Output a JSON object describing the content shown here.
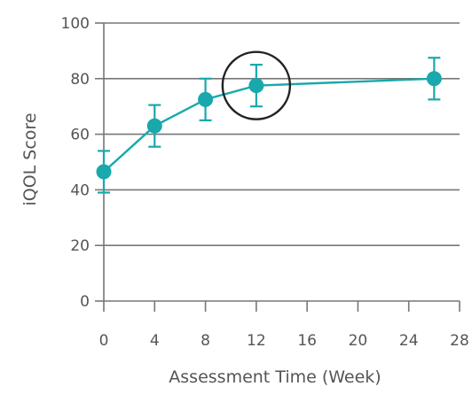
{
  "chart_data": {
    "type": "line",
    "xlabel": "Assessment Time (Week)",
    "ylabel": "iQOL Score",
    "xlim": [
      0,
      28
    ],
    "ylim": [
      0,
      100
    ],
    "x_ticks": [
      0,
      4,
      8,
      12,
      16,
      20,
      24,
      28
    ],
    "y_ticks": [
      0,
      20,
      40,
      60,
      80,
      100
    ],
    "grid": "horizontal",
    "series": [
      {
        "color": "#19a8ac",
        "points": [
          {
            "x": 0,
            "y": 46.5,
            "err": 7.5
          },
          {
            "x": 4,
            "y": 63,
            "err": 7.5
          },
          {
            "x": 8,
            "y": 72.5,
            "err": 7.5
          },
          {
            "x": 12,
            "y": 77.5,
            "err": 7.5
          },
          {
            "x": 26,
            "y": 80,
            "err": 7.5
          }
        ]
      }
    ],
    "annotations": [
      {
        "type": "circle",
        "target_x": 12,
        "target_y": 77.5,
        "color": "#222222"
      }
    ]
  }
}
